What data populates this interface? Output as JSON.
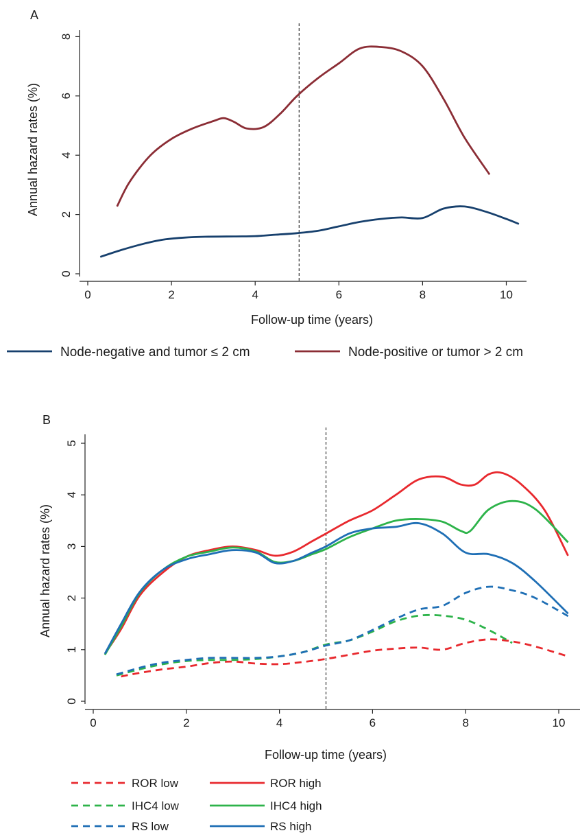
{
  "chart_data": [
    {
      "panel_label": "A",
      "type": "line",
      "xlabel": "Follow-up time (years)",
      "ylabel": "Annual hazard rates (%)",
      "xlim": [
        0,
        10.5
      ],
      "ylim": [
        0,
        8
      ],
      "xticks": [
        0,
        2,
        4,
        6,
        8,
        10
      ],
      "yticks": [
        0,
        2,
        4,
        6,
        8
      ],
      "grid": false,
      "reference_line_x": 5.05,
      "legend_position": "bottom",
      "series": [
        {
          "name": "Node-negative and tumor ≤ 2 cm",
          "color": "#17406d",
          "dash": "solid",
          "x": [
            0.3,
            0.8,
            1.3,
            1.8,
            2.3,
            2.8,
            3.5,
            4.0,
            4.5,
            5.0,
            5.5,
            6.0,
            6.5,
            7.0,
            7.5,
            8.0,
            8.5,
            9.0,
            9.5,
            10.0,
            10.3
          ],
          "y": [
            0.57,
            0.8,
            1.0,
            1.15,
            1.22,
            1.25,
            1.26,
            1.27,
            1.32,
            1.37,
            1.45,
            1.6,
            1.75,
            1.85,
            1.9,
            1.88,
            2.2,
            2.27,
            2.1,
            1.85,
            1.68
          ]
        },
        {
          "name": "Node-positive or tumor > 2 cm",
          "color": "#8b2d35",
          "dash": "solid",
          "x": [
            0.7,
            1.0,
            1.5,
            2.0,
            2.5,
            3.0,
            3.25,
            3.5,
            3.8,
            4.2,
            4.6,
            5.0,
            5.5,
            6.0,
            6.5,
            7.0,
            7.5,
            8.0,
            8.5,
            9.0,
            9.6
          ],
          "y": [
            2.27,
            3.1,
            4.0,
            4.55,
            4.9,
            5.15,
            5.25,
            5.12,
            4.9,
            4.95,
            5.4,
            6.0,
            6.6,
            7.1,
            7.6,
            7.65,
            7.5,
            7.0,
            5.9,
            4.6,
            3.35
          ]
        }
      ]
    },
    {
      "panel_label": "B",
      "type": "line",
      "xlabel": "Follow-up time (years)",
      "ylabel": "Annual hazard rates (%)",
      "xlim": [
        0,
        10.5
      ],
      "ylim": [
        0,
        5
      ],
      "xticks": [
        0,
        2,
        4,
        6,
        8,
        10
      ],
      "yticks": [
        0,
        1,
        2,
        3,
        4,
        5
      ],
      "grid": false,
      "reference_line_x": 5.0,
      "legend_position": "bottom",
      "series": [
        {
          "name": "ROR low",
          "color": "#e8292e",
          "dash": "dashed",
          "x": [
            0.6,
            1.0,
            1.5,
            2.0,
            2.5,
            3.0,
            3.5,
            4.0,
            4.5,
            5.0,
            5.5,
            6.0,
            6.5,
            7.0,
            7.5,
            8.0,
            8.5,
            9.0,
            9.5,
            10.2
          ],
          "y": [
            0.48,
            0.55,
            0.62,
            0.67,
            0.74,
            0.77,
            0.73,
            0.72,
            0.76,
            0.82,
            0.9,
            0.98,
            1.02,
            1.04,
            1.0,
            1.13,
            1.2,
            1.16,
            1.06,
            0.87
          ]
        },
        {
          "name": "ROR high",
          "color": "#e8292e",
          "dash": "solid",
          "x": [
            0.25,
            0.6,
            1.0,
            1.5,
            2.0,
            2.5,
            3.0,
            3.5,
            3.9,
            4.3,
            4.7,
            5.0,
            5.5,
            6.0,
            6.5,
            7.0,
            7.5,
            7.9,
            8.2,
            8.5,
            8.8,
            9.2,
            9.7,
            10.2
          ],
          "y": [
            0.92,
            1.4,
            2.05,
            2.5,
            2.8,
            2.93,
            3.0,
            2.93,
            2.82,
            2.9,
            3.1,
            3.25,
            3.5,
            3.7,
            4.0,
            4.3,
            4.35,
            4.2,
            4.2,
            4.4,
            4.42,
            4.2,
            3.7,
            2.82
          ]
        },
        {
          "name": "IHC4 low",
          "color": "#2db34a",
          "dash": "dashed",
          "x": [
            0.5,
            1.0,
            1.5,
            2.0,
            2.5,
            3.0,
            3.5,
            4.0,
            4.5,
            5.0,
            5.5,
            6.0,
            6.5,
            7.0,
            7.5,
            8.0,
            8.5,
            9.0
          ],
          "y": [
            0.5,
            0.62,
            0.72,
            0.78,
            0.8,
            0.8,
            0.82,
            0.87,
            0.95,
            1.1,
            1.18,
            1.35,
            1.55,
            1.66,
            1.66,
            1.58,
            1.38,
            1.13
          ]
        },
        {
          "name": "IHC4 high",
          "color": "#2db34a",
          "dash": "solid",
          "x": [
            0.25,
            0.6,
            1.0,
            1.5,
            2.0,
            2.5,
            3.0,
            3.5,
            3.9,
            4.3,
            4.7,
            5.0,
            5.5,
            6.0,
            6.5,
            7.0,
            7.5,
            7.9,
            8.1,
            8.5,
            9.0,
            9.5,
            10.2
          ],
          "y": [
            0.9,
            1.45,
            2.1,
            2.55,
            2.8,
            2.9,
            2.98,
            2.9,
            2.7,
            2.72,
            2.85,
            2.95,
            3.18,
            3.35,
            3.5,
            3.53,
            3.48,
            3.3,
            3.3,
            3.72,
            3.88,
            3.72,
            3.08
          ]
        },
        {
          "name": "RS low",
          "color": "#1f6fb5",
          "dash": "dashed",
          "x": [
            0.5,
            1.0,
            1.5,
            2.0,
            2.5,
            3.0,
            3.5,
            4.0,
            4.5,
            5.0,
            5.5,
            6.0,
            6.5,
            7.0,
            7.5,
            8.0,
            8.5,
            9.0,
            9.5,
            10.2
          ],
          "y": [
            0.52,
            0.65,
            0.75,
            0.8,
            0.84,
            0.84,
            0.84,
            0.87,
            0.95,
            1.08,
            1.18,
            1.38,
            1.6,
            1.78,
            1.85,
            2.1,
            2.22,
            2.15,
            2.0,
            1.65
          ]
        },
        {
          "name": "RS high",
          "color": "#1f6fb5",
          "dash": "solid",
          "x": [
            0.25,
            0.6,
            1.0,
            1.5,
            2.0,
            2.5,
            3.0,
            3.5,
            3.9,
            4.3,
            4.7,
            5.0,
            5.5,
            6.0,
            6.5,
            7.0,
            7.5,
            8.0,
            8.5,
            9.0,
            9.5,
            10.2
          ],
          "y": [
            0.92,
            1.5,
            2.12,
            2.55,
            2.75,
            2.85,
            2.93,
            2.88,
            2.68,
            2.72,
            2.88,
            3.0,
            3.25,
            3.35,
            3.38,
            3.45,
            3.25,
            2.88,
            2.85,
            2.68,
            2.32,
            1.7
          ]
        }
      ]
    }
  ]
}
